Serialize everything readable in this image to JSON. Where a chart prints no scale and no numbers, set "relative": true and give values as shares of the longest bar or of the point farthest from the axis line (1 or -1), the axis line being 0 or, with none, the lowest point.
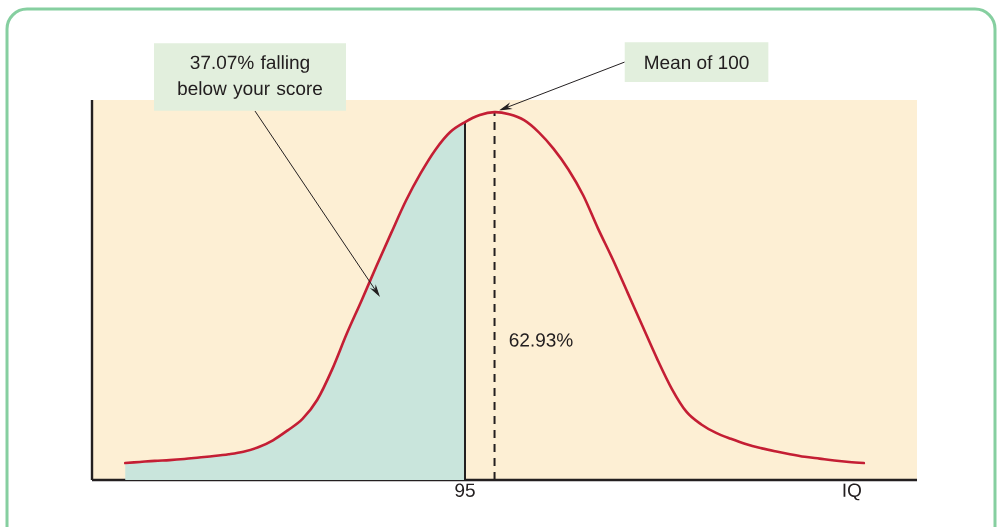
{
  "chart_data": {
    "type": "line",
    "xlabel": "IQ",
    "relative": true,
    "categories": [
      null,
      null,
      null,
      null,
      null,
      null,
      null,
      null,
      null,
      null,
      null,
      null,
      null,
      null,
      null,
      null,
      null,
      null,
      null,
      null,
      null,
      null,
      null,
      null,
      null,
      null,
      null,
      null,
      null,
      null,
      null,
      null,
      null,
      null,
      null,
      null,
      null,
      null,
      null,
      null,
      null,
      null,
      null,
      null,
      null,
      null,
      null,
      null,
      null,
      null,
      null
    ],
    "series": [
      {
        "type": "area",
        "color": "#c9e5dc",
        "values": [
          0.046,
          0.049,
          0.052,
          0.054,
          0.057,
          0.061,
          0.065,
          0.07,
          0.077,
          0.089,
          0.108,
          0.135,
          0.166,
          0.218,
          0.3,
          0.398,
          0.488,
          0.581,
          0.671,
          0.759,
          0.834,
          0.898,
          0.946,
          0.973,
          null,
          null,
          null,
          null,
          null,
          null,
          null,
          null,
          null,
          null,
          null,
          null,
          null,
          null,
          null,
          null,
          null,
          null,
          null,
          null,
          null,
          null,
          null,
          null,
          null,
          null,
          null
        ]
      },
      {
        "color": "#c41e34",
        "values": [
          0.046,
          0.049,
          0.052,
          0.054,
          0.057,
          0.061,
          0.065,
          0.07,
          0.077,
          0.089,
          0.108,
          0.135,
          0.166,
          0.218,
          0.3,
          0.398,
          0.488,
          0.581,
          0.671,
          0.759,
          0.834,
          0.898,
          0.946,
          0.973,
          0.992,
          1.0,
          0.994,
          0.978,
          0.945,
          0.9,
          0.844,
          0.774,
          0.684,
          0.6,
          0.51,
          0.42,
          0.33,
          0.248,
          0.185,
          0.151,
          0.128,
          0.112,
          0.098,
          0.087,
          0.078,
          0.07,
          0.063,
          0.058,
          0.053,
          0.049,
          0.046
        ]
      }
    ],
    "annotations": [
      "37.07% falling below your score",
      "Mean of 100",
      "62.93%",
      "95"
    ]
  }
}
